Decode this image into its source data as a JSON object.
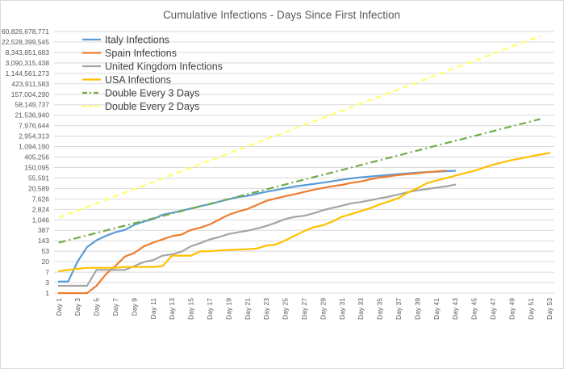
{
  "chart_data": {
    "type": "line",
    "title": "Cumulative Infections - Days Since First Infection",
    "xlabel": "",
    "ylabel": "",
    "y_scale": "log",
    "y_ticks": [
      "1",
      "3",
      "7",
      "20",
      "53",
      "143",
      "387",
      "1,046",
      "2,824",
      "7,626",
      "20,589",
      "55,591",
      "150,095",
      "405,256",
      "1,094,190",
      "2,954,313",
      "7,976,644",
      "21,536,940",
      "58,149,737",
      "157,004,290",
      "423,911,583",
      "1,144,561,273",
      "3,090,315,438",
      "8,343,851,683",
      "22,528,399,545",
      "60,826,678,771"
    ],
    "y_tick_values": [
      1,
      2.7,
      7.29,
      19.68,
      53.14,
      143.49,
      387.42,
      1046.03,
      2824.29,
      7625.6,
      20589.11,
      55590.6,
      150094.64,
      405255.5,
      1094189.9,
      2954312.7,
      7976644.3,
      21536940,
      58149737,
      157004290,
      423911583,
      1144561273,
      3090315438,
      8343851683,
      22528399545,
      60826678771
    ],
    "x_tick_labels": [
      "Day 1",
      "Day 3",
      "Day 5",
      "Day 7",
      "Day 9",
      "Day 11",
      "Day 13",
      "Day 15",
      "Day 17",
      "Day 19",
      "Day 21",
      "Day 23",
      "Day 25",
      "Day 27",
      "Day 29",
      "Day 31",
      "Day 33",
      "Day 35",
      "Day 37",
      "Day 39",
      "Day 41",
      "Day 43",
      "Day 45",
      "Day 47",
      "Day 49",
      "Day 51",
      "Day 53"
    ],
    "x_tick_days": [
      1,
      3,
      5,
      7,
      9,
      11,
      13,
      15,
      17,
      19,
      21,
      23,
      25,
      27,
      29,
      31,
      33,
      35,
      37,
      39,
      41,
      43,
      45,
      47,
      49,
      51,
      53
    ],
    "x_range": [
      0.5,
      53.5
    ],
    "legend_position": "top-left",
    "grid": {
      "horizontal": true,
      "vertical": false
    },
    "series": [
      {
        "name": "Italy Infections",
        "color": "#5b9bd5",
        "dash": "solid",
        "x": [
          1,
          2,
          3,
          4,
          5,
          6,
          7,
          8,
          9,
          10,
          11,
          12,
          13,
          14,
          15,
          16,
          17,
          18,
          19,
          20,
          21,
          22,
          23,
          24,
          25,
          26,
          27,
          28,
          29,
          30,
          31,
          32,
          33,
          34,
          35,
          36,
          37,
          38,
          39,
          40,
          41,
          42,
          43
        ],
        "y": [
          3,
          3,
          20,
          79,
          150,
          229,
          322,
          400,
          650,
          888,
          1128,
          1694,
          2036,
          2502,
          3089,
          3858,
          4636,
          5883,
          7375,
          9172,
          10149,
          12462,
          15113,
          17660,
          21157,
          24747,
          27980,
          31506,
          35713,
          41035,
          47021,
          53578,
          59138,
          63927,
          69176,
          74386,
          80589,
          86498,
          92472,
          97689,
          101739,
          105792,
          110574
        ]
      },
      {
        "name": "Spain Infections",
        "color": "#ed7d31",
        "dash": "solid",
        "x": [
          1,
          2,
          3,
          4,
          5,
          6,
          7,
          8,
          9,
          10,
          11,
          12,
          13,
          14,
          15,
          16,
          17,
          18,
          19,
          20,
          21,
          22,
          23,
          24,
          25,
          26,
          27,
          28,
          29,
          30,
          31,
          32,
          33,
          34,
          35,
          36,
          37,
          38,
          39,
          40,
          41,
          42
        ],
        "y": [
          1,
          1,
          1,
          1,
          2,
          6,
          13,
          32,
          45,
          84,
          120,
          165,
          222,
          259,
          400,
          500,
          673,
          1073,
          1695,
          2277,
          2950,
          4334,
          6391,
          7988,
          9942,
          11826,
          14769,
          18077,
          21571,
          25496,
          28768,
          35136,
          39885,
          49515,
          57786,
          65719,
          73235,
          80110,
          87956,
          95923,
          104118,
          112065
        ]
      },
      {
        "name": "United Kingdom Infections",
        "color": "#a5a5a5",
        "dash": "solid",
        "x": [
          1,
          2,
          3,
          4,
          5,
          6,
          7,
          8,
          9,
          10,
          11,
          12,
          13,
          14,
          15,
          16,
          17,
          18,
          19,
          20,
          21,
          22,
          23,
          24,
          25,
          26,
          27,
          28,
          29,
          30,
          31,
          32,
          33,
          34,
          35,
          36,
          37,
          38,
          39,
          40,
          41,
          42,
          43
        ],
        "y": [
          2,
          2,
          2,
          2,
          9,
          9,
          9,
          9,
          13,
          19,
          23,
          35,
          40,
          51,
          85,
          115,
          163,
          206,
          273,
          321,
          373,
          456,
          590,
          798,
          1140,
          1391,
          1543,
          1950,
          2626,
          3269,
          3983,
          5018,
          5683,
          6650,
          8077,
          9529,
          11658,
          14543,
          17089,
          19522,
          22141,
          25150,
          29474
        ]
      },
      {
        "name": "USA Infections",
        "color": "#ffc000",
        "dash": "solid",
        "x": [
          1,
          2,
          3,
          4,
          5,
          6,
          7,
          8,
          9,
          10,
          11,
          12,
          13,
          14,
          15,
          16,
          17,
          18,
          19,
          20,
          21,
          22,
          23,
          24,
          25,
          26,
          27,
          28,
          29,
          30,
          31,
          32,
          33,
          34,
          35,
          36,
          37,
          38,
          39,
          40,
          41,
          42,
          43,
          44,
          45,
          46,
          47,
          48,
          49,
          50,
          51,
          52,
          53
        ],
        "y": [
          8,
          9,
          10,
          11,
          11,
          11,
          11,
          12,
          12,
          12,
          12,
          13,
          35,
          35,
          35,
          53,
          53,
          57,
          60,
          62,
          64,
          69,
          91,
          100,
          149,
          230,
          361,
          521,
          626,
          899,
          1400,
          1816,
          2419,
          3184,
          4561,
          6061,
          8291,
          14104,
          21254,
          34143,
          43734,
          54432,
          69125,
          88430,
          109000,
          148000,
          195000,
          245000,
          305000,
          360000,
          430000,
          510000,
          600000
        ]
      },
      {
        "name": "Double Every 3 Days",
        "color": "#70ad47",
        "dash": "dash-dot",
        "x": [
          1,
          52
        ],
        "y": [
          120,
          15000000
        ]
      },
      {
        "name": "Double Every 2 Days",
        "color": "#ffff66",
        "dash": "dash",
        "x": [
          1,
          52
        ],
        "y": [
          1300,
          40000000000
        ]
      }
    ]
  }
}
